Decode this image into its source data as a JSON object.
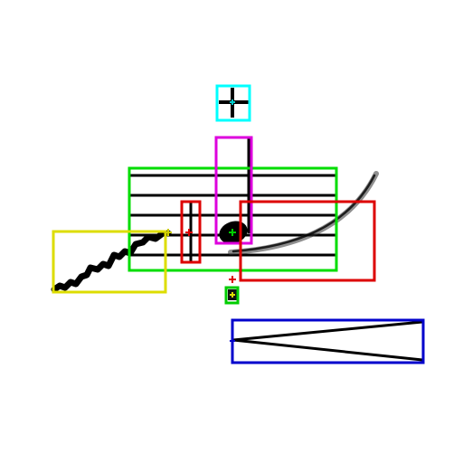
{
  "image": {
    "background": "#ffffff",
    "content": "music-notation-symbols-with-detection-boxes",
    "notation_color": "#000000"
  },
  "annotation_colors": {
    "staff": "#00dd00",
    "note": "#dd00dd",
    "fermata_or_tick": "#00ffff",
    "bar_line": "#dd0000",
    "slur": "#dd0000",
    "trill": "#dddd00",
    "hairpin": "#0000cc",
    "small_marker": "#00cc00"
  },
  "symbols": [
    {
      "name": "staff-lines",
      "count": 5
    },
    {
      "name": "quarter-note",
      "head": "filled",
      "stem": "up"
    },
    {
      "name": "bar-line"
    },
    {
      "name": "slur-curve"
    },
    {
      "name": "trill-wavy-line"
    },
    {
      "name": "decrescendo-hairpin"
    },
    {
      "name": "cross-mark"
    },
    {
      "name": "small-glyph"
    }
  ]
}
